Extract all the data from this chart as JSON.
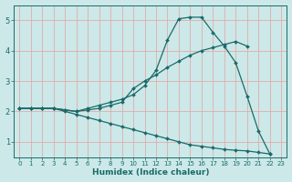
{
  "xlabel": "Humidex (Indice chaleur)",
  "bg_color": "#cce8e8",
  "grid_color": "#e8a0a0",
  "line_color": "#1a6b6b",
  "xlim": [
    -0.5,
    23.5
  ],
  "ylim": [
    0.5,
    5.5
  ],
  "yticks": [
    1,
    2,
    3,
    4,
    5
  ],
  "xticks": [
    0,
    1,
    2,
    3,
    4,
    5,
    6,
    7,
    8,
    9,
    10,
    11,
    12,
    13,
    14,
    15,
    16,
    17,
    18,
    19,
    20,
    21,
    22,
    23
  ],
  "lines": [
    {
      "x": [
        0,
        1,
        2,
        3,
        4,
        5,
        6,
        7,
        8,
        9,
        10,
        11,
        12,
        13,
        14,
        15,
        16,
        17,
        18,
        19,
        20,
        21,
        22
      ],
      "y": [
        2.1,
        2.1,
        2.1,
        2.1,
        2.05,
        2.0,
        2.1,
        2.2,
        2.3,
        2.4,
        2.55,
        2.85,
        3.35,
        4.35,
        5.05,
        5.1,
        5.1,
        4.6,
        4.15,
        3.6,
        2.5,
        1.35,
        0.6
      ]
    },
    {
      "x": [
        0,
        1,
        2,
        3,
        4,
        5,
        6,
        7,
        8,
        9,
        10,
        11,
        12,
        13,
        14,
        15,
        16,
        17,
        18,
        19,
        20
      ],
      "y": [
        2.1,
        2.1,
        2.1,
        2.1,
        2.05,
        2.0,
        2.05,
        2.1,
        2.2,
        2.3,
        2.75,
        3.0,
        3.2,
        3.45,
        3.65,
        3.85,
        4.0,
        4.1,
        4.2,
        4.3,
        4.15
      ]
    },
    {
      "x": [
        0,
        1,
        2,
        3,
        4,
        5,
        6,
        7,
        8,
        9,
        10,
        11,
        12,
        13,
        14,
        15,
        16,
        17,
        18,
        19,
        20,
        21,
        22
      ],
      "y": [
        2.1,
        2.1,
        2.1,
        2.1,
        2.0,
        1.9,
        1.8,
        1.7,
        1.6,
        1.5,
        1.4,
        1.3,
        1.2,
        1.1,
        1.0,
        0.9,
        0.85,
        0.8,
        0.75,
        0.72,
        0.7,
        0.65,
        0.6
      ]
    }
  ]
}
